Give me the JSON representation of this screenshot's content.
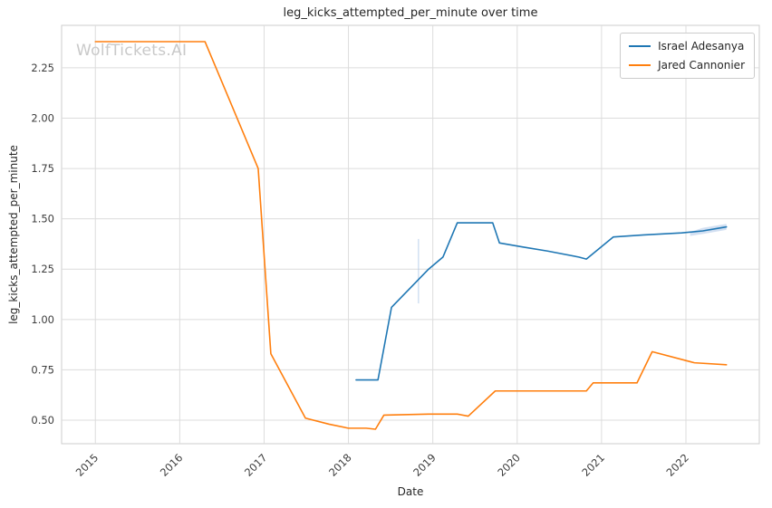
{
  "watermark": "WolfTickets.AI",
  "chart_data": {
    "type": "line",
    "title": "leg_kicks_attempted_per_minute over time",
    "xlabel": "Date",
    "ylabel": "leg_kicks_attempted_per_minute",
    "xlim": [
      2014.6,
      2022.87
    ],
    "ylim": [
      0.383,
      2.461
    ],
    "grid": true,
    "legend_position": "upper right",
    "x_ticks": [
      2015,
      2016,
      2017,
      2018,
      2019,
      2020,
      2021,
      2022
    ],
    "x_tick_labels": [
      "2015",
      "2016",
      "2017",
      "2018",
      "2019",
      "2020",
      "2021",
      "2022"
    ],
    "y_ticks": [
      0.5,
      0.75,
      1.0,
      1.25,
      1.5,
      1.75,
      2.0,
      2.25
    ],
    "y_tick_labels": [
      "0.50",
      "0.75",
      "1.00",
      "1.25",
      "1.50",
      "1.75",
      "2.00",
      "2.25"
    ],
    "colors": {
      "grid": "#dcdcdc",
      "plot_border": "#cccccc",
      "text": "#262626",
      "tick_text": "#3d3d3d",
      "band": "#aec7e8"
    },
    "series": [
      {
        "name": "Israel Adesanya",
        "color": "#1f77b4",
        "x": [
          2018.09,
          2018.35,
          2018.51,
          2018.95,
          2019.12,
          2019.29,
          2019.71,
          2019.79,
          2020.07,
          2020.36,
          2020.73,
          2020.82,
          2021.14,
          2021.5,
          2021.95,
          2022.2,
          2022.48
        ],
        "y": [
          0.7,
          0.7,
          1.06,
          1.25,
          1.31,
          1.48,
          1.48,
          1.38,
          1.36,
          1.34,
          1.31,
          1.3,
          1.41,
          1.42,
          1.43,
          1.44,
          1.46
        ]
      },
      {
        "name": "Jared Cannonier",
        "color": "#ff7f0e",
        "x": [
          2015.0,
          2016.3,
          2016.93,
          2017.08,
          2017.49,
          2017.77,
          2018.0,
          2018.21,
          2018.32,
          2018.42,
          2018.95,
          2019.29,
          2019.42,
          2019.74,
          2020.3,
          2020.82,
          2020.9,
          2021.42,
          2021.6,
          2022.1,
          2022.48
        ],
        "y": [
          2.38,
          2.38,
          1.75,
          0.83,
          0.51,
          0.48,
          0.46,
          0.46,
          0.455,
          0.525,
          0.53,
          0.53,
          0.52,
          0.645,
          0.645,
          0.645,
          0.685,
          0.685,
          0.84,
          0.785,
          0.775
        ]
      }
    ],
    "annotations": {
      "confidence_band": {
        "series": "Israel Adesanya",
        "x": [
          2022.05,
          2022.2,
          2022.48
        ],
        "upper": [
          1.435,
          1.455,
          1.475
        ],
        "lower": [
          1.415,
          1.425,
          1.445
        ]
      },
      "vertical_segment": {
        "x": 2018.83,
        "y0": 1.08,
        "y1": 1.4
      }
    }
  }
}
